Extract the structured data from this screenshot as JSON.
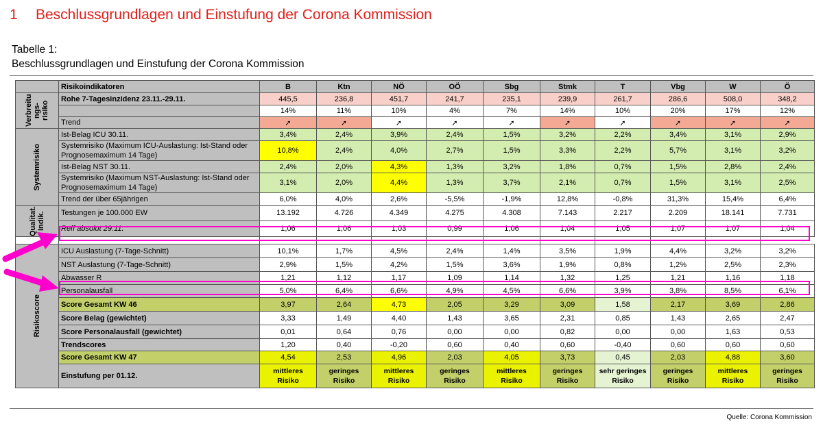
{
  "heading": {
    "number": "1",
    "text": "Beschlussgrundlagen und Einstufung der Corona Kommission"
  },
  "caption": {
    "line1": "Tabelle 1:",
    "line2": "Beschlussgrundlagen und Einstufung der Corona Kommission"
  },
  "source": "Quelle: Corona Kommission",
  "colors": {
    "highlight": "#ff00cc",
    "heading_red": "#e0201c"
  },
  "groups": {
    "verbreitung": "Verbreitu ngs-risiko",
    "system": "Systemrisiko",
    "qualitat": "Qualitat. Indik.",
    "score": "Risikoscore"
  },
  "table": {
    "header": [
      "Risikoindikatoren",
      "B",
      "Ktn",
      "NÖ",
      "OÖ",
      "Sbg",
      "Stmk",
      "T",
      "Vbg",
      "W",
      "Ö"
    ],
    "rows": [
      {
        "label": "Rohe 7-Tagesinzidenz 23.11.-29.11.",
        "values": [
          "445,5",
          "236,8",
          "451,7",
          "241,7",
          "235,1",
          "239,9",
          "261,7",
          "286,6",
          "508,0",
          "348,2"
        ]
      },
      {
        "label": "",
        "values": [
          "14%",
          "11%",
          "10%",
          "4%",
          "7%",
          "14%",
          "10%",
          "20%",
          "17%",
          "12%"
        ]
      },
      {
        "label": "Trend",
        "values": [
          "➚",
          "➚",
          "➚",
          "➚",
          "➚",
          "➚",
          "➚",
          "➚",
          "➚",
          "➚"
        ]
      },
      {
        "label": "Ist-Belag ICU 30.11.",
        "values": [
          "3,4%",
          "2,4%",
          "3,9%",
          "2,4%",
          "1,5%",
          "3,2%",
          "2,2%",
          "3,4%",
          "3,1%",
          "2,9%"
        ]
      },
      {
        "label": "Systemrisiko (Maximum ICU-Auslastung: Ist-Stand oder Prognosemaximum 14 Tage)",
        "values": [
          "10,8%",
          "2,4%",
          "4,0%",
          "2,7%",
          "1,5%",
          "3,3%",
          "2,2%",
          "5,7%",
          "3,1%",
          "3,2%"
        ]
      },
      {
        "label": "Ist-Belag NST 30.11.",
        "values": [
          "2,4%",
          "2,0%",
          "4,3%",
          "1,3%",
          "3,2%",
          "1,8%",
          "0,7%",
          "1,5%",
          "2,8%",
          "2,4%"
        ]
      },
      {
        "label": "Systemrisiko (Maximum NST-Auslastung: Ist-Stand oder Prognosemaximum 14 Tage)",
        "values": [
          "3,1%",
          "2,0%",
          "4,4%",
          "1,3%",
          "3,7%",
          "2,1%",
          "0,7%",
          "1,5%",
          "3,1%",
          "2,5%"
        ]
      },
      {
        "label": "Trend der über 65jährigen",
        "values": [
          "6,0%",
          "4,0%",
          "2,6%",
          "-5,5%",
          "-1,9%",
          "12,8%",
          "-0,8%",
          "31,3%",
          "15,4%",
          "6,4%"
        ]
      },
      {
        "label": "Testungen je 100.000 EW",
        "values": [
          "13.192",
          "4.726",
          "4.349",
          "4.275",
          "4.308",
          "7.143",
          "2.217",
          "2.209",
          "18.141",
          "7.731"
        ]
      },
      {
        "label": "Reff absolut 29.11.",
        "values": [
          "1,06",
          "1,06",
          "1,03",
          "0,99",
          "1,06",
          "1,04",
          "1,05",
          "1,07",
          "1,07",
          "1,04"
        ]
      },
      {
        "label": "ICU Auslastung (7-Tage-Schnitt)",
        "values": [
          "10,1%",
          "1,7%",
          "4,5%",
          "2,4%",
          "1,4%",
          "3,5%",
          "1,9%",
          "4,4%",
          "3,2%",
          "3,2%"
        ]
      },
      {
        "label": "NST Auslastung (7-Tage-Schnitt)",
        "values": [
          "2,9%",
          "1,5%",
          "4,2%",
          "1,5%",
          "3,6%",
          "1,9%",
          "0,8%",
          "1,2%",
          "2,5%",
          "2,3%"
        ]
      },
      {
        "label": "Abwasser R",
        "values": [
          "1,21",
          "1,12",
          "1,17",
          "1,09",
          "1,14",
          "1,32",
          "1,25",
          "1,21",
          "1,16",
          "1,18"
        ]
      },
      {
        "label": "Personalausfall",
        "values": [
          "5,0%",
          "6,4%",
          "6,6%",
          "4,9%",
          "4,5%",
          "6,6%",
          "3,9%",
          "3,8%",
          "8,5%",
          "6,1%"
        ]
      },
      {
        "label": "Score Gesamt KW 46",
        "values": [
          "3,97",
          "2,64",
          "4,73",
          "2,05",
          "3,29",
          "3,09",
          "1,58",
          "2,17",
          "3,69",
          "2,86"
        ]
      },
      {
        "label": "Score Belag (gewichtet)",
        "values": [
          "3,33",
          "1,49",
          "4,40",
          "1,43",
          "3,65",
          "2,31",
          "0,85",
          "1,43",
          "2,65",
          "2,47"
        ]
      },
      {
        "label": "Score Personalausfall (gewichtet)",
        "values": [
          "0,01",
          "0,64",
          "0,76",
          "0,00",
          "0,00",
          "0,82",
          "0,00",
          "0,00",
          "1,63",
          "0,53"
        ]
      },
      {
        "label": "Trendscores",
        "values": [
          "1,20",
          "0,40",
          "-0,20",
          "0,60",
          "0,40",
          "0,60",
          "-0,40",
          "0,60",
          "0,60",
          "0,60"
        ]
      },
      {
        "label": "Score Gesamt KW 47",
        "values": [
          "4,54",
          "2,53",
          "4,96",
          "2,03",
          "4,05",
          "3,73",
          "0,45",
          "2,03",
          "4,88",
          "3,60"
        ]
      },
      {
        "label": "Einstufung per 01.12.",
        "values": [
          "mittleres Risiko",
          "geringes Risiko",
          "mittleres Risiko",
          "geringes Risiko",
          "mittleres Risiko",
          "geringes Risiko",
          "sehr geringes Risiko",
          "geringes Risiko",
          "mittleres Risiko",
          "geringes Risiko"
        ]
      }
    ]
  }
}
